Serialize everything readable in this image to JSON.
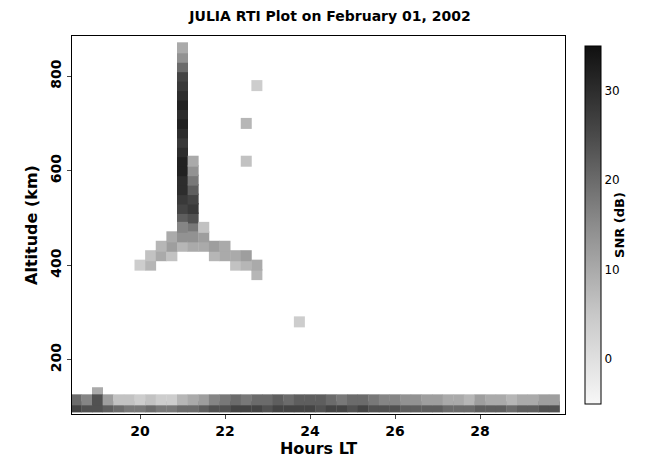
{
  "chart_data": {
    "type": "heatmap",
    "title": "JULIA RTI Plot on February 01, 2002",
    "x_label": "Hours LT",
    "y_label": "Altitude (km)",
    "xlim": [
      18.4,
      30
    ],
    "ylim": [
      85,
      885
    ],
    "xticks": [
      20,
      22,
      24,
      26,
      28
    ],
    "yticks": [
      200,
      400,
      600,
      800
    ],
    "colorbar": {
      "title": "SNR (dB)",
      "range": [
        -5,
        35
      ],
      "ticks": [
        0,
        10,
        20,
        30
      ]
    },
    "cells": [
      [
        21.0,
        500,
        22
      ],
      [
        21.0,
        520,
        26
      ],
      [
        21.0,
        540,
        28
      ],
      [
        21.0,
        560,
        30
      ],
      [
        21.0,
        580,
        30
      ],
      [
        21.0,
        600,
        32
      ],
      [
        21.0,
        620,
        32
      ],
      [
        21.0,
        640,
        30
      ],
      [
        21.0,
        660,
        28
      ],
      [
        21.0,
        680,
        30
      ],
      [
        21.0,
        700,
        32
      ],
      [
        21.0,
        720,
        30
      ],
      [
        21.0,
        740,
        32
      ],
      [
        21.0,
        760,
        30
      ],
      [
        21.0,
        780,
        28
      ],
      [
        21.0,
        800,
        26
      ],
      [
        21.0,
        820,
        20
      ],
      [
        21.0,
        840,
        14
      ],
      [
        21.0,
        860,
        10
      ],
      [
        21.25,
        480,
        18
      ],
      [
        21.25,
        500,
        24
      ],
      [
        21.25,
        520,
        28
      ],
      [
        21.25,
        540,
        26
      ],
      [
        21.25,
        560,
        22
      ],
      [
        21.25,
        580,
        18
      ],
      [
        21.25,
        600,
        14
      ],
      [
        21.25,
        620,
        10
      ],
      [
        20.0,
        400,
        4
      ],
      [
        20.25,
        400,
        8
      ],
      [
        20.25,
        420,
        6
      ],
      [
        20.5,
        420,
        10
      ],
      [
        20.5,
        440,
        8
      ],
      [
        20.75,
        420,
        6
      ],
      [
        20.75,
        440,
        12
      ],
      [
        20.75,
        460,
        10
      ],
      [
        21.0,
        440,
        8
      ],
      [
        21.0,
        460,
        14
      ],
      [
        21.0,
        480,
        16
      ],
      [
        21.25,
        440,
        10
      ],
      [
        21.25,
        460,
        14
      ],
      [
        21.5,
        440,
        10
      ],
      [
        21.5,
        460,
        12
      ],
      [
        21.5,
        480,
        6
      ],
      [
        21.75,
        420,
        8
      ],
      [
        21.75,
        440,
        12
      ],
      [
        22.0,
        420,
        10
      ],
      [
        22.0,
        440,
        10
      ],
      [
        22.25,
        400,
        6
      ],
      [
        22.25,
        420,
        10
      ],
      [
        22.5,
        400,
        8
      ],
      [
        22.5,
        420,
        12
      ],
      [
        22.75,
        380,
        8
      ],
      [
        22.75,
        400,
        10
      ],
      [
        22.5,
        620,
        6
      ],
      [
        22.5,
        700,
        8
      ],
      [
        22.75,
        780,
        4
      ],
      [
        23.75,
        280,
        4
      ],
      [
        19.0,
        130,
        10
      ],
      [
        18.5,
        100,
        26
      ],
      [
        18.75,
        100,
        24
      ],
      [
        19.0,
        100,
        24
      ],
      [
        19.25,
        100,
        22
      ],
      [
        19.5,
        100,
        20
      ],
      [
        19.75,
        100,
        18
      ],
      [
        20.0,
        100,
        18
      ],
      [
        20.25,
        100,
        20
      ],
      [
        20.5,
        100,
        18
      ],
      [
        20.75,
        100,
        18
      ],
      [
        21.0,
        100,
        20
      ],
      [
        21.25,
        100,
        20
      ],
      [
        21.5,
        100,
        22
      ],
      [
        21.75,
        100,
        24
      ],
      [
        22.0,
        100,
        24
      ],
      [
        22.25,
        100,
        26
      ],
      [
        22.5,
        100,
        26
      ],
      [
        22.75,
        100,
        26
      ],
      [
        23.0,
        100,
        24
      ],
      [
        23.25,
        100,
        26
      ],
      [
        23.5,
        100,
        26
      ],
      [
        23.75,
        100,
        26
      ],
      [
        24.0,
        100,
        26
      ],
      [
        24.25,
        100,
        24
      ],
      [
        24.5,
        100,
        26
      ],
      [
        24.75,
        100,
        26
      ],
      [
        25.0,
        100,
        24
      ],
      [
        25.25,
        100,
        26
      ],
      [
        25.5,
        100,
        24
      ],
      [
        25.75,
        100,
        24
      ],
      [
        26.0,
        100,
        24
      ],
      [
        26.25,
        100,
        22
      ],
      [
        26.5,
        100,
        22
      ],
      [
        26.75,
        100,
        22
      ],
      [
        27.0,
        100,
        22
      ],
      [
        27.25,
        100,
        20
      ],
      [
        27.5,
        100,
        20
      ],
      [
        27.75,
        100,
        20
      ],
      [
        28.0,
        100,
        22
      ],
      [
        28.25,
        100,
        22
      ],
      [
        28.5,
        100,
        22
      ],
      [
        28.75,
        100,
        20
      ],
      [
        29.0,
        100,
        22
      ],
      [
        29.25,
        100,
        22
      ],
      [
        29.5,
        100,
        24
      ],
      [
        29.75,
        100,
        24
      ],
      [
        18.5,
        115,
        20
      ],
      [
        18.75,
        115,
        16
      ],
      [
        19.0,
        115,
        24
      ],
      [
        19.25,
        115,
        12
      ],
      [
        19.5,
        115,
        6
      ],
      [
        19.75,
        115,
        6
      ],
      [
        20.0,
        115,
        4
      ],
      [
        20.25,
        115,
        6
      ],
      [
        20.5,
        115,
        4
      ],
      [
        20.75,
        115,
        4
      ],
      [
        21.0,
        115,
        8
      ],
      [
        21.25,
        115,
        10
      ],
      [
        21.5,
        115,
        12
      ],
      [
        21.75,
        115,
        16
      ],
      [
        22.0,
        115,
        18
      ],
      [
        22.25,
        115,
        20
      ],
      [
        22.5,
        115,
        18
      ],
      [
        22.75,
        115,
        20
      ],
      [
        23.0,
        115,
        20
      ],
      [
        23.25,
        115,
        22
      ],
      [
        23.5,
        115,
        20
      ],
      [
        23.75,
        115,
        22
      ],
      [
        24.0,
        115,
        22
      ],
      [
        24.25,
        115,
        22
      ],
      [
        24.5,
        115,
        20
      ],
      [
        24.75,
        115,
        18
      ],
      [
        25.0,
        115,
        20
      ],
      [
        25.25,
        115,
        20
      ],
      [
        25.5,
        115,
        18
      ],
      [
        25.75,
        115,
        16
      ],
      [
        26.0,
        115,
        16
      ],
      [
        26.25,
        115,
        14
      ],
      [
        26.5,
        115,
        14
      ],
      [
        26.75,
        115,
        12
      ],
      [
        27.0,
        115,
        12
      ],
      [
        27.25,
        115,
        10
      ],
      [
        27.5,
        115,
        10
      ],
      [
        27.75,
        115,
        8
      ],
      [
        28.0,
        115,
        12
      ],
      [
        28.25,
        115,
        10
      ],
      [
        28.5,
        115,
        10
      ],
      [
        28.75,
        115,
        8
      ],
      [
        29.0,
        115,
        10
      ],
      [
        29.25,
        115,
        10
      ],
      [
        29.5,
        115,
        12
      ],
      [
        29.75,
        115,
        12
      ]
    ]
  }
}
